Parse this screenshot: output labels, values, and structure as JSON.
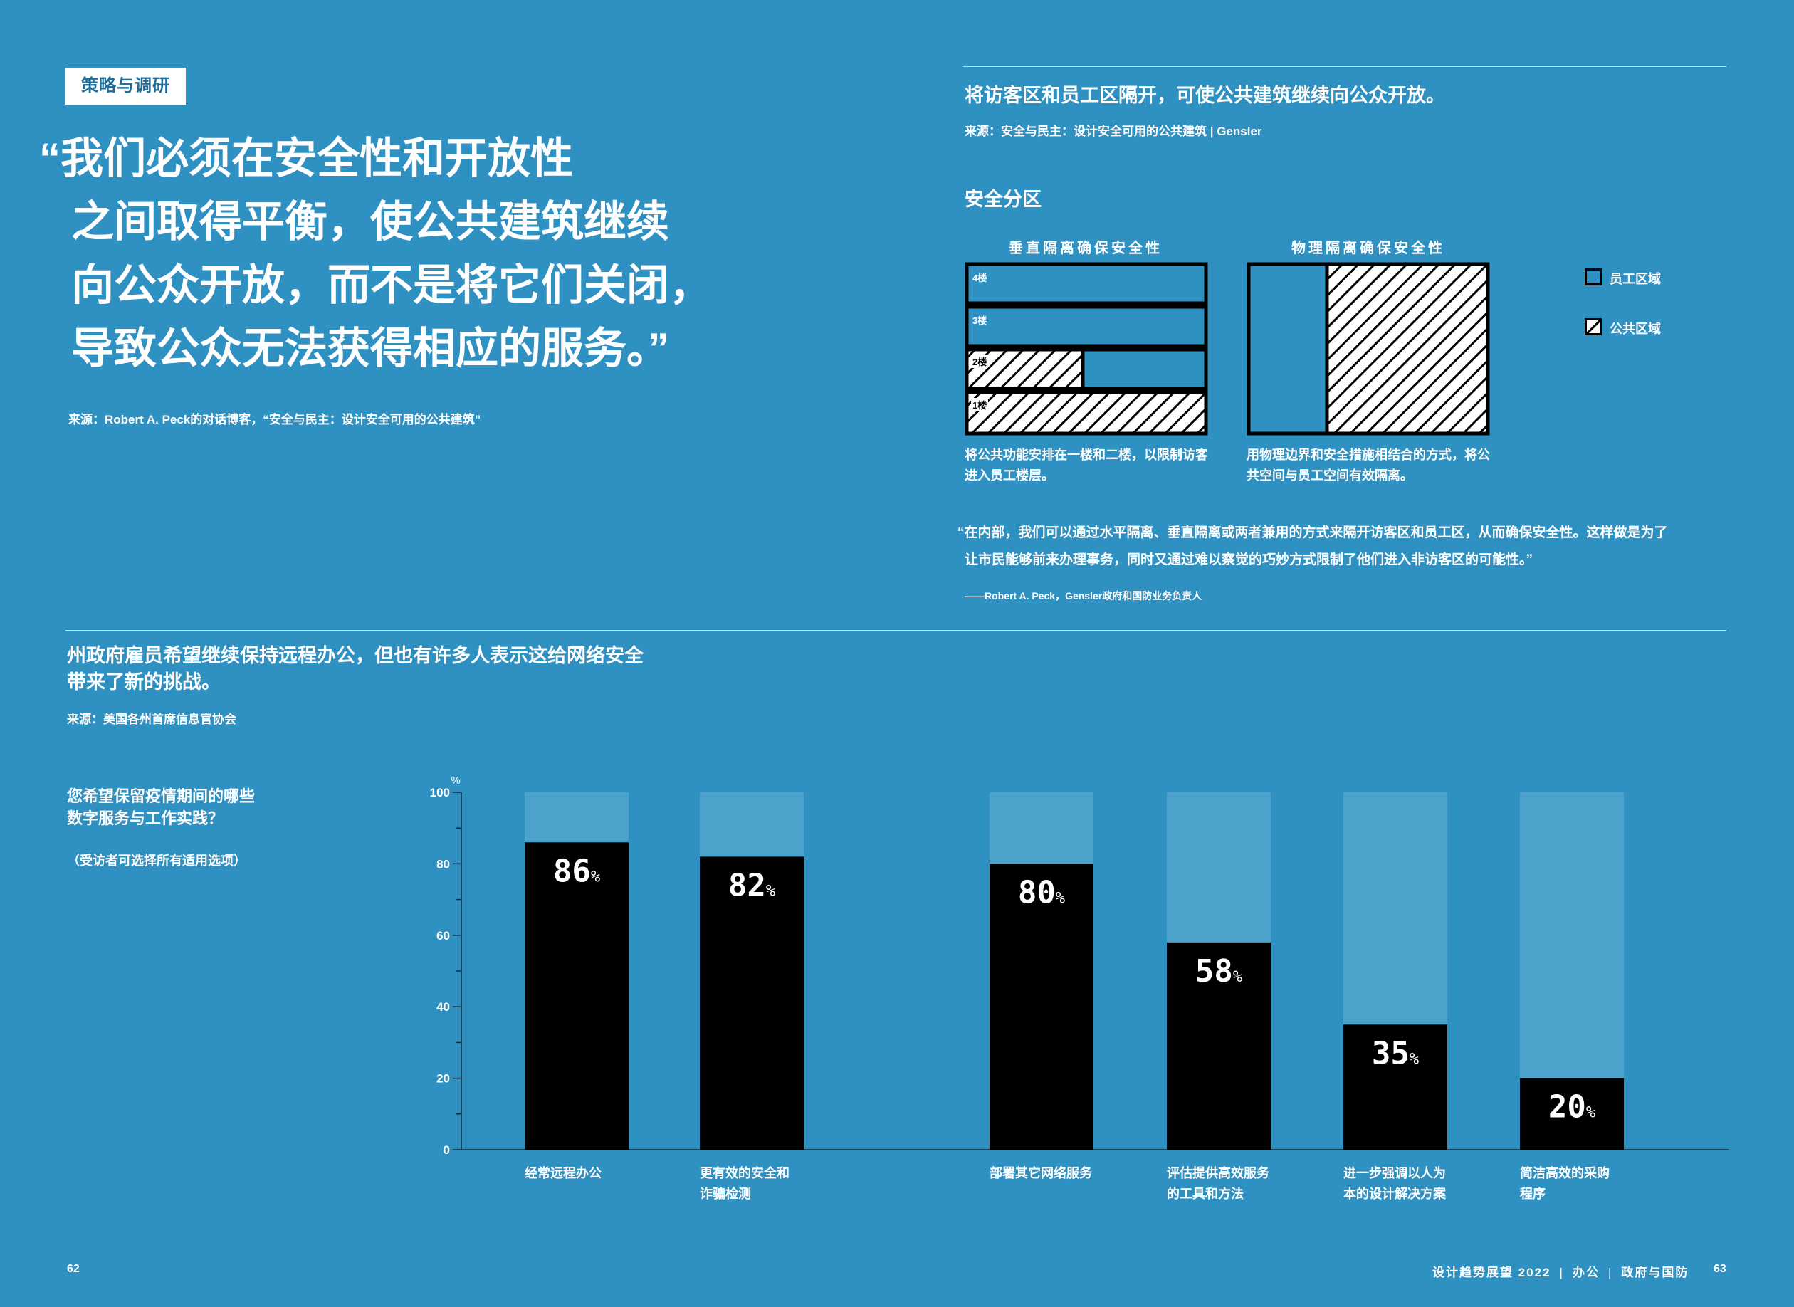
{
  "left_page": {
    "tag": "策略与调研",
    "quote_lines": [
      "“我们必须在安全性和开放性",
      "之间取得平衡，使公共建筑继续",
      "向公众开放，而不是将它们关闭，",
      "导致公众无法获得相应的服务。”"
    ],
    "quote_source": "来源：Robert A. Peck的对话博客，“安全与民主：设计安全可用的公共建筑”",
    "page_number": "62"
  },
  "right_page": {
    "heading": "将访客区和员工区隔开，可使公共建筑继续向公众开放。",
    "source": "来源：安全与民主：设计安全可用的公共建筑 | Gensler",
    "diagram_title": "安全分区",
    "diagram_left": {
      "title": "垂直隔离确保安全性",
      "floors": [
        "4楼",
        "3楼",
        "2楼",
        "1楼"
      ],
      "caption_lines": [
        "将公共功能安排在一楼和二楼，以限制访客",
        "进入员工楼层。"
      ]
    },
    "diagram_right": {
      "title": "物理隔离确保安全性",
      "caption_lines": [
        "用物理边界和安全措施相结合的方式，将公",
        "共空间与员工空间有效隔离。"
      ]
    },
    "legend": {
      "staff": "员工区域",
      "public": "公共区域"
    },
    "quote_lines": [
      "“在内部，我们可以通过水平隔离、垂直隔离或两者兼用的方式来隔开访客区和员工区，从而确保安全性。这样做是为了",
      "让市民能够前来办理事务，同时又通过难以察觉的巧妙方式限制了他们进入非访客区的可能性。”"
    ],
    "quote_attribution": "——Robert A. Peck，Gensler政府和国防业务负责人",
    "footer": {
      "pub": "设计趋势展望 2022",
      "sep": "|",
      "section1": "办公",
      "section2": "政府与国防",
      "page_number": "63"
    }
  },
  "bottom": {
    "heading_lines": [
      "州政府雇员希望继续保持远程办公，但也有许多人表示这给网络安全",
      "带来了新的挑战。"
    ],
    "source": "来源：美国各州首席信息官协会",
    "question_lines": [
      "您希望保留疫情期间的哪些",
      "数字服务与工作实践？"
    ],
    "question_note": "（受访者可选择所有适用选项）"
  },
  "chart_data": {
    "type": "bar",
    "title": "",
    "xlabel": "",
    "ylabel": "%",
    "ylim": [
      0,
      100
    ],
    "yticks": [
      0,
      20,
      40,
      60,
      80,
      100
    ],
    "grid": false,
    "categories": [
      [
        "经常远程办公"
      ],
      [
        "更有效的安全和",
        "诈骗检测"
      ],
      [
        "部署其它网络服务"
      ],
      [
        "评估提供高效服务",
        "的工具和方法"
      ],
      [
        "进一步强调以人为",
        "本的设计解决方案"
      ],
      [
        "简洁高效的采购",
        "程序"
      ]
    ],
    "values": [
      86,
      82,
      80,
      58,
      35,
      20
    ],
    "value_suffix": "%",
    "colors": {
      "bar": "#000000",
      "background_bar": "#4da2cc",
      "axis": "#0b2a3d"
    }
  }
}
